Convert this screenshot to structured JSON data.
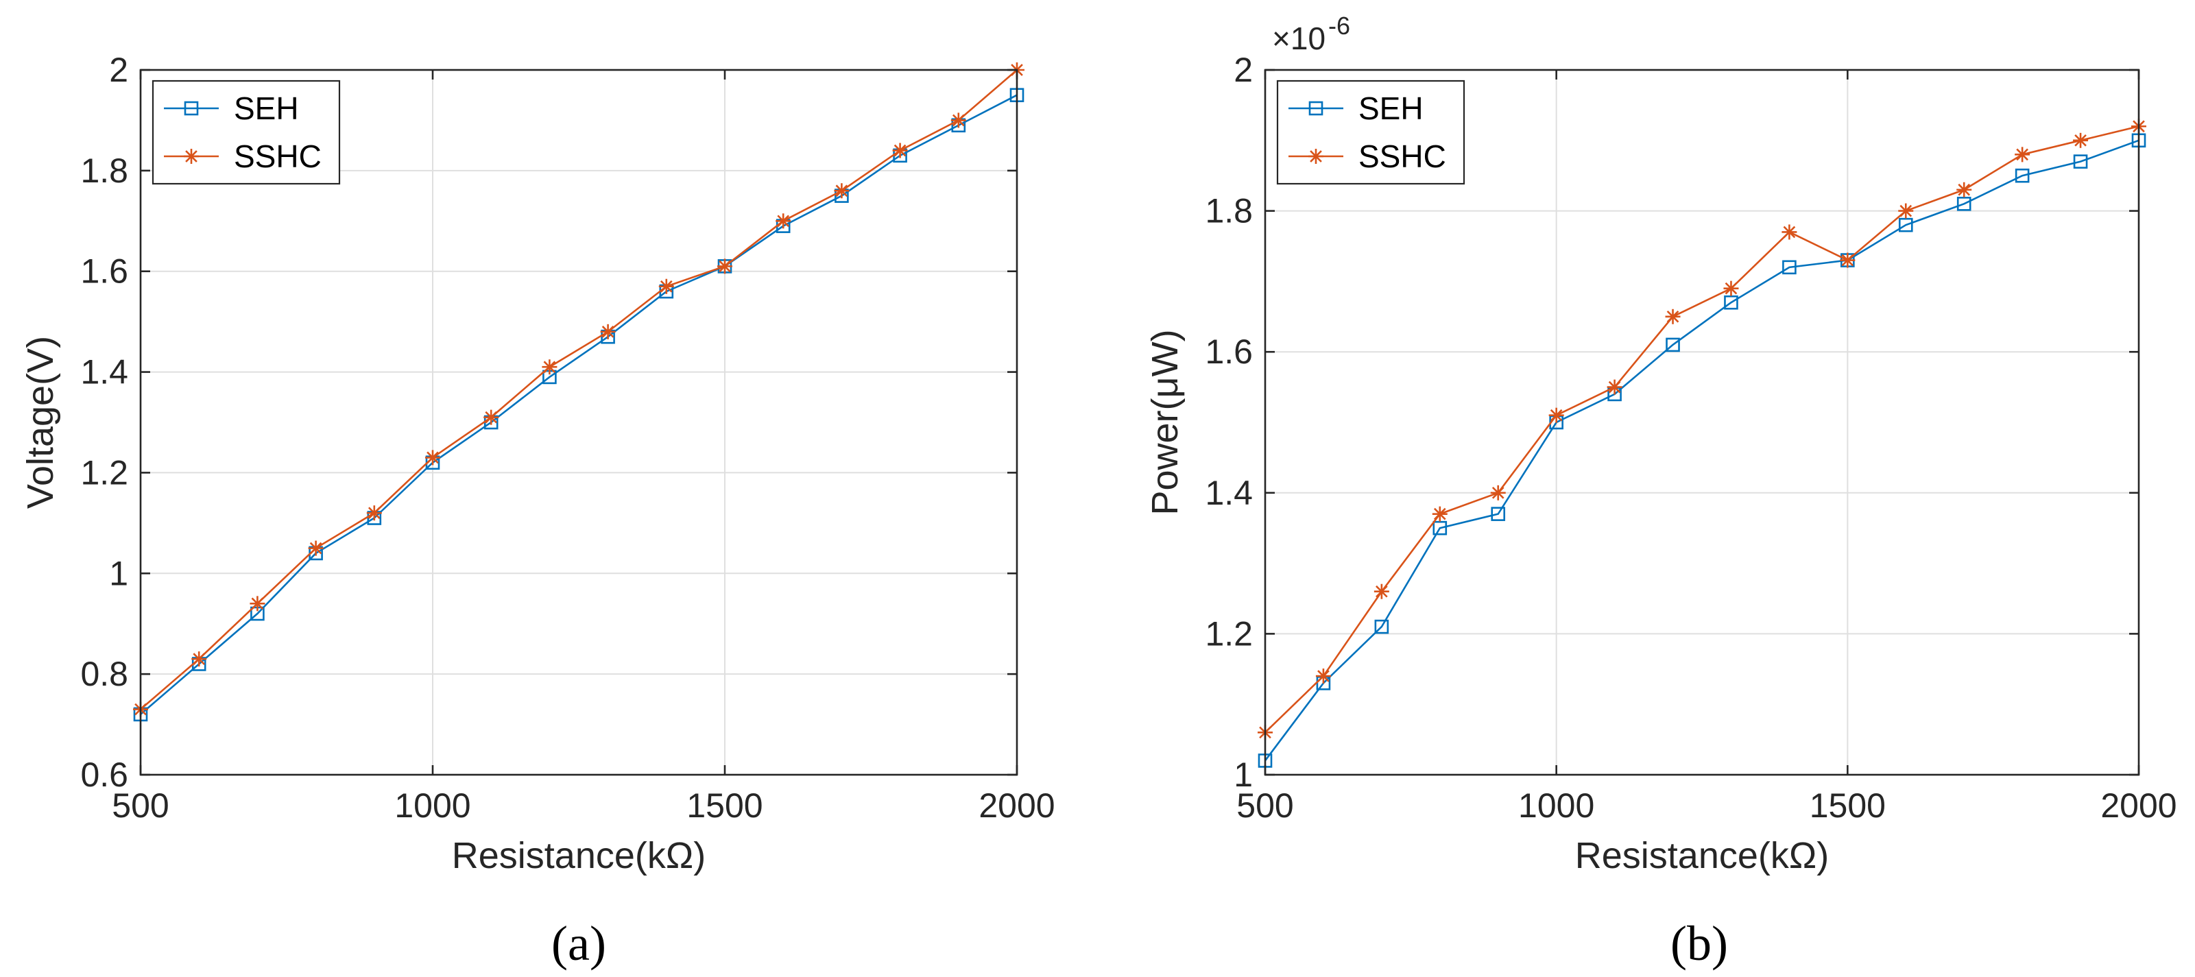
{
  "colors": {
    "seh": "#0072BD",
    "sshc": "#D95319",
    "grid": "#DFDFDF",
    "axis": "#262626"
  },
  "chart_data": [
    {
      "type": "line",
      "panel_label": "(a)",
      "title": "",
      "xlabel": "Resistance(kΩ)",
      "ylabel": "Voltage(V)",
      "xlim": [
        500,
        2000
      ],
      "ylim": [
        0.6,
        2.0
      ],
      "xticks": [
        500,
        1000,
        1500,
        2000
      ],
      "xtick_labels": [
        "500",
        "1000",
        "1500",
        "2000"
      ],
      "yticks": [
        0.6,
        0.8,
        1.0,
        1.2,
        1.4,
        1.6,
        1.8,
        2.0
      ],
      "ytick_labels": [
        "0.6",
        "0.8",
        "1",
        "1.2",
        "1.4",
        "1.6",
        "1.8",
        "2"
      ],
      "exponent_label": "",
      "grid": true,
      "legend": {
        "position": "top-left",
        "entries": [
          "SEH",
          "SSHC"
        ]
      },
      "x": [
        500,
        600,
        700,
        800,
        900,
        1000,
        1100,
        1200,
        1300,
        1400,
        1500,
        1600,
        1700,
        1800,
        1900,
        2000
      ],
      "series": [
        {
          "name": "SEH",
          "marker": "square",
          "values": [
            0.72,
            0.82,
            0.92,
            1.04,
            1.11,
            1.22,
            1.3,
            1.39,
            1.47,
            1.56,
            1.61,
            1.69,
            1.75,
            1.83,
            1.89,
            1.95
          ]
        },
        {
          "name": "SSHC",
          "marker": "asterisk",
          "values": [
            0.73,
            0.83,
            0.94,
            1.05,
            1.12,
            1.23,
            1.31,
            1.41,
            1.48,
            1.57,
            1.61,
            1.7,
            1.76,
            1.84,
            1.9,
            2.0
          ]
        }
      ]
    },
    {
      "type": "line",
      "panel_label": "(b)",
      "title": "",
      "xlabel": "Resistance(kΩ)",
      "ylabel": "Power(μW)",
      "xlim": [
        500,
        2000
      ],
      "ylim": [
        1.0,
        2.0
      ],
      "xticks": [
        500,
        1000,
        1500,
        2000
      ],
      "xtick_labels": [
        "500",
        "1000",
        "1500",
        "2000"
      ],
      "yticks": [
        1.0,
        1.2,
        1.4,
        1.6,
        1.8,
        2.0
      ],
      "ytick_labels": [
        "1",
        "1.2",
        "1.4",
        "1.6",
        "1.8",
        "2"
      ],
      "exponent_label": "-6",
      "grid": true,
      "legend": {
        "position": "top-left",
        "entries": [
          "SEH",
          "SSHC"
        ]
      },
      "x": [
        500,
        600,
        700,
        800,
        900,
        1000,
        1100,
        1200,
        1300,
        1400,
        1500,
        1600,
        1700,
        1800,
        1900,
        2000
      ],
      "series": [
        {
          "name": "SEH",
          "marker": "square",
          "values": [
            1.02,
            1.13,
            1.21,
            1.35,
            1.37,
            1.5,
            1.54,
            1.61,
            1.67,
            1.72,
            1.73,
            1.78,
            1.81,
            1.85,
            1.87,
            1.9
          ]
        },
        {
          "name": "SSHC",
          "marker": "asterisk",
          "values": [
            1.06,
            1.14,
            1.26,
            1.37,
            1.4,
            1.51,
            1.55,
            1.65,
            1.69,
            1.77,
            1.73,
            1.8,
            1.83,
            1.88,
            1.9,
            1.92
          ]
        }
      ]
    }
  ]
}
